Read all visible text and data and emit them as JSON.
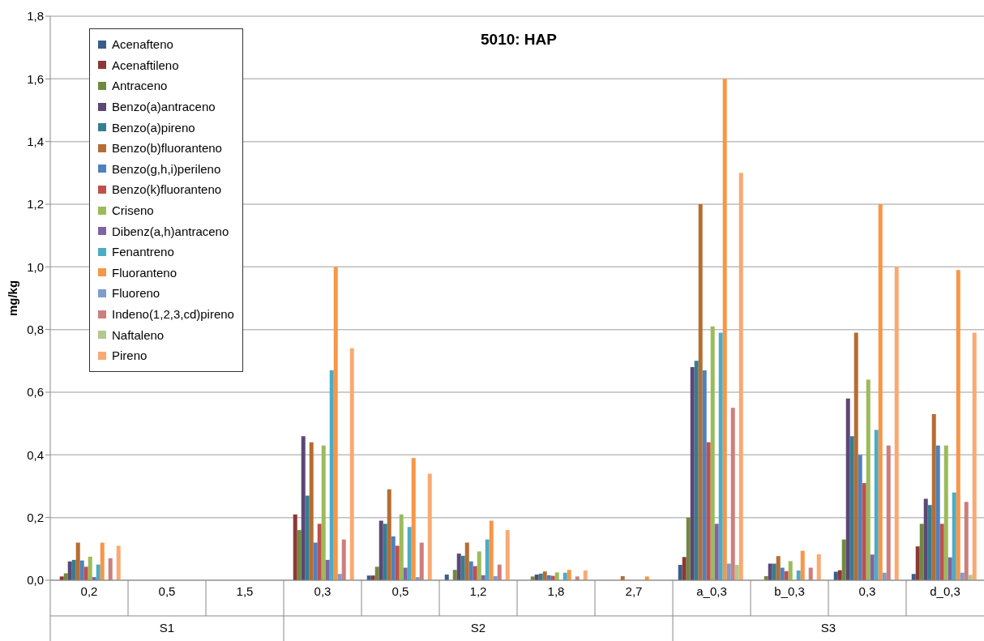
{
  "chart_data": {
    "type": "bar",
    "title": "5010: HAP",
    "ylabel": "mg/kg",
    "categories": [
      "0,2",
      "0,5",
      "1,5",
      "0,3",
      "0,5",
      "1,2",
      "1,8",
      "2,7",
      "a_0,3",
      "b_0,3",
      "0,3",
      "d_0,3"
    ],
    "annotations": [
      "S1",
      "S2",
      "S3"
    ],
    "ylim": [
      0,
      1.8
    ],
    "yticks": [
      {
        "value": 0,
        "label": "0,0"
      },
      {
        "value": 0.2,
        "label": "0,2"
      },
      {
        "value": 0.4,
        "label": "0,4"
      },
      {
        "value": 0.6,
        "label": "0,6"
      },
      {
        "value": 0.8,
        "label": "0,8"
      },
      {
        "value": 1,
        "label": "1,0"
      },
      {
        "value": 1.2,
        "label": "1,2"
      },
      {
        "value": 1.4,
        "label": "1,4"
      },
      {
        "value": 1.6,
        "label": "1,6"
      },
      {
        "value": 1.8,
        "label": "1,8"
      }
    ],
    "grid": "y",
    "legend": "top left",
    "series": [
      {
        "name": "Acenafteno",
        "color": "#385d8a",
        "values": [
          null,
          null,
          null,
          null,
          0.015,
          0.018,
          null,
          null,
          0.049,
          null,
          0.027,
          0.02
        ]
      },
      {
        "name": "Acenaftileno",
        "color": "#8c3836",
        "values": [
          0.012,
          null,
          null,
          0.21,
          0.015,
          null,
          null,
          null,
          0.074,
          null,
          0.032,
          0.108
        ]
      },
      {
        "name": "Antraceno",
        "color": "#71893f",
        "values": [
          0.022,
          null,
          null,
          0.16,
          0.043,
          0.033,
          0.012,
          null,
          0.2,
          0.013,
          0.13,
          0.18
        ]
      },
      {
        "name": "Benzo(a)antraceno",
        "color": "#5c4776",
        "values": [
          0.06,
          null,
          null,
          0.46,
          0.19,
          0.085,
          0.018,
          null,
          0.68,
          0.053,
          0.58,
          0.26
        ]
      },
      {
        "name": "Benzo(a)pireno",
        "color": "#357d91",
        "values": [
          0.065,
          null,
          null,
          0.27,
          0.18,
          0.078,
          0.021,
          null,
          0.7,
          0.053,
          0.46,
          0.24
        ]
      },
      {
        "name": "Benzo(b)fluoranteno",
        "color": "#b66d31",
        "values": [
          0.12,
          null,
          null,
          0.44,
          0.29,
          0.12,
          0.028,
          0.013,
          1.2,
          0.077,
          0.79,
          0.53
        ]
      },
      {
        "name": "Benzo(g,h,i)perileno",
        "color": "#4f81bd",
        "values": [
          0.063,
          null,
          null,
          0.12,
          0.14,
          0.06,
          0.016,
          null,
          0.67,
          0.04,
          0.4,
          0.43
        ]
      },
      {
        "name": "Benzo(k)fluoranteno",
        "color": "#c0504d",
        "values": [
          0.043,
          null,
          null,
          0.18,
          0.11,
          0.045,
          0.014,
          null,
          0.44,
          0.029,
          0.31,
          0.18
        ]
      },
      {
        "name": "Criseno",
        "color": "#9bbb59",
        "values": [
          0.075,
          null,
          null,
          0.43,
          0.21,
          0.092,
          0.025,
          null,
          0.81,
          0.061,
          0.64,
          0.43
        ]
      },
      {
        "name": "Dibenz(a,h)antraceno",
        "color": "#8064a2",
        "values": [
          0.01,
          null,
          null,
          0.065,
          0.04,
          0.016,
          null,
          null,
          0.18,
          null,
          0.082,
          0.073
        ]
      },
      {
        "name": "Fenantreno",
        "color": "#4bacc6",
        "values": [
          0.05,
          null,
          null,
          0.67,
          0.17,
          0.13,
          0.024,
          null,
          0.79,
          0.031,
          0.48,
          0.28
        ]
      },
      {
        "name": "Fluoranteno",
        "color": "#f79646",
        "values": [
          0.12,
          null,
          null,
          1.0,
          0.39,
          0.19,
          0.033,
          0.012,
          1.6,
          0.094,
          1.2,
          0.99
        ]
      },
      {
        "name": "Fluoreno",
        "color": "#7f9ccd",
        "values": [
          null,
          null,
          null,
          0.02,
          0.01,
          0.013,
          null,
          null,
          0.053,
          null,
          0.024,
          0.024
        ]
      },
      {
        "name": "Indeno(1,2,3,cd)pireno",
        "color": "#cd7e7c",
        "values": [
          0.07,
          null,
          null,
          0.13,
          0.12,
          0.05,
          0.012,
          null,
          0.55,
          0.04,
          0.43,
          0.25
        ]
      },
      {
        "name": "Naftaleno",
        "color": "#b3c98d",
        "values": [
          null,
          null,
          null,
          null,
          null,
          null,
          null,
          null,
          0.049,
          null,
          null,
          0.017
        ]
      },
      {
        "name": "Pireno",
        "color": "#f9a972",
        "values": [
          0.11,
          null,
          null,
          0.74,
          0.34,
          0.16,
          0.031,
          null,
          1.3,
          0.083,
          1.0,
          0.79
        ]
      }
    ]
  }
}
